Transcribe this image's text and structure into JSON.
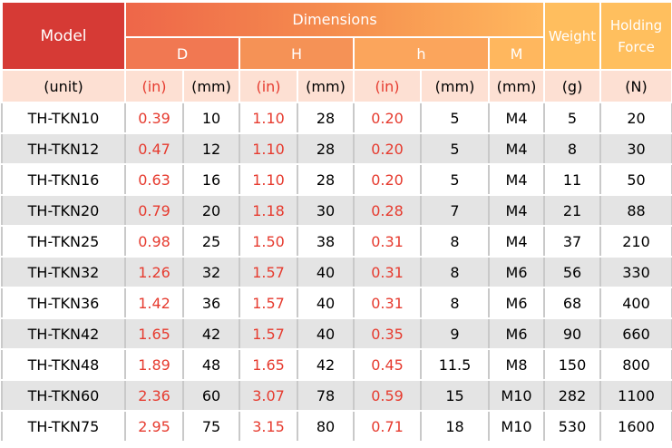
{
  "header": {
    "model": "Model",
    "dimensions": "Dimensions",
    "d_col": "D",
    "h_upper_col": "H",
    "h_lower_col": "h",
    "m_col": "M",
    "weight": "Weight",
    "holding_force": "Holding Force"
  },
  "units": [
    "(unit)",
    "(in)",
    "(mm)",
    "(in)",
    "(mm)",
    "(in)",
    "(mm)",
    "(mm)",
    "(g)",
    "(N)"
  ],
  "rows": [
    [
      "TH-TKN10",
      "0.39",
      "10",
      "1.10",
      "28",
      "0.20",
      "5",
      "M4",
      "5",
      "20"
    ],
    [
      "TH-TKN12",
      "0.47",
      "12",
      "1.10",
      "28",
      "0.20",
      "5",
      "M4",
      "8",
      "30"
    ],
    [
      "TH-TKN16",
      "0.63",
      "16",
      "1.10",
      "28",
      "0.20",
      "5",
      "M4",
      "11",
      "50"
    ],
    [
      "TH-TKN20",
      "0.79",
      "20",
      "1.18",
      "30",
      "0.28",
      "7",
      "M4",
      "21",
      "88"
    ],
    [
      "TH-TKN25",
      "0.98",
      "25",
      "1.50",
      "38",
      "0.31",
      "8",
      "M4",
      "37",
      "210"
    ],
    [
      "TH-TKN32",
      "1.26",
      "32",
      "1.57",
      "40",
      "0.31",
      "8",
      "M6",
      "56",
      "330"
    ],
    [
      "TH-TKN36",
      "1.42",
      "36",
      "1.57",
      "40",
      "0.31",
      "8",
      "M6",
      "68",
      "400"
    ],
    [
      "TH-TKN42",
      "1.65",
      "42",
      "1.57",
      "40",
      "0.35",
      "9",
      "M6",
      "90",
      "660"
    ],
    [
      "TH-TKN48",
      "1.89",
      "48",
      "1.65",
      "42",
      "0.45",
      "11.5",
      "M8",
      "150",
      "800"
    ],
    [
      "TH-TKN60",
      "2.36",
      "60",
      "3.07",
      "78",
      "0.59",
      "15",
      "M10",
      "282",
      "1100"
    ],
    [
      "TH-TKN75",
      "2.95",
      "75",
      "3.15",
      "80",
      "0.71",
      "18",
      "M10",
      "530",
      "1600"
    ]
  ],
  "colors": {
    "model_header": "#d63a35",
    "inch_text": "#e63b2f",
    "units_row": "#fde0d3",
    "even_row": "#e4e4e4",
    "weight_header": "#ffbe5e"
  }
}
